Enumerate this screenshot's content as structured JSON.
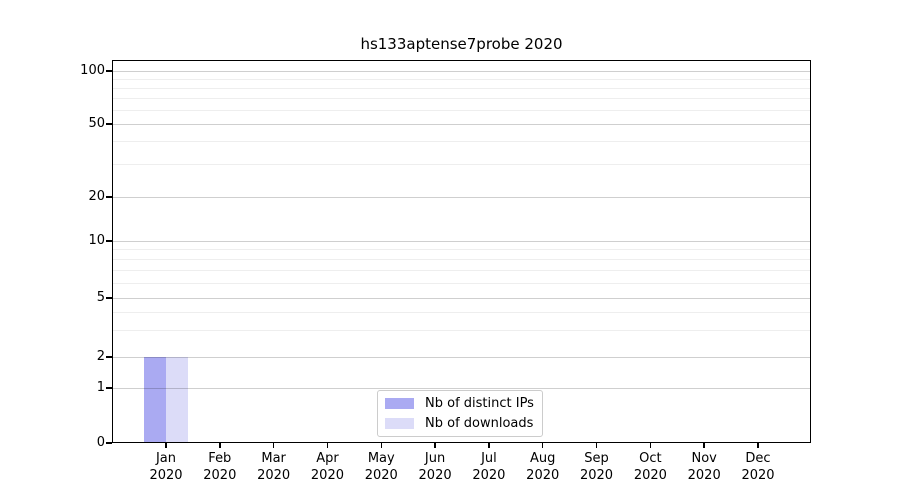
{
  "title": "hs133aptense7probe 2020",
  "legend": {
    "items": [
      {
        "label": "Nb of distinct IPs",
        "color": "#aaaaf2"
      },
      {
        "label": "Nb of downloads",
        "color": "#dcdcf8"
      }
    ]
  },
  "y_axis": {
    "tick_labels": [
      "0",
      "1",
      "2",
      "5",
      "10",
      "20",
      "50",
      "100"
    ]
  },
  "x_axis": {
    "ticks": [
      {
        "month": "Jan",
        "year": "2020"
      },
      {
        "month": "Feb",
        "year": "2020"
      },
      {
        "month": "Mar",
        "year": "2020"
      },
      {
        "month": "Apr",
        "year": "2020"
      },
      {
        "month": "May",
        "year": "2020"
      },
      {
        "month": "Jun",
        "year": "2020"
      },
      {
        "month": "Jul",
        "year": "2020"
      },
      {
        "month": "Aug",
        "year": "2020"
      },
      {
        "month": "Sep",
        "year": "2020"
      },
      {
        "month": "Oct",
        "year": "2020"
      },
      {
        "month": "Nov",
        "year": "2020"
      },
      {
        "month": "Dec",
        "year": "2020"
      }
    ]
  },
  "chart_data": {
    "type": "bar",
    "title": "hs133aptense7probe 2020",
    "categories": [
      "Jan 2020",
      "Feb 2020",
      "Mar 2020",
      "Apr 2020",
      "May 2020",
      "Jun 2020",
      "Jul 2020",
      "Aug 2020",
      "Sep 2020",
      "Oct 2020",
      "Nov 2020",
      "Dec 2020"
    ],
    "series": [
      {
        "name": "Nb of distinct IPs",
        "color": "#aaaaf2",
        "values": [
          2,
          0,
          0,
          0,
          0,
          0,
          0,
          0,
          0,
          0,
          0,
          0
        ]
      },
      {
        "name": "Nb of downloads",
        "color": "#dcdcf8",
        "values": [
          2,
          0,
          0,
          0,
          0,
          0,
          0,
          0,
          0,
          0,
          0,
          0
        ]
      }
    ],
    "xlabel": "",
    "ylabel": "",
    "yscale": "log-like (0,1,2,5,10,20,50,100)",
    "y_ticks": [
      0,
      1,
      2,
      5,
      10,
      20,
      50,
      100
    ],
    "y_minor_gridlines": [
      3,
      4,
      6,
      7,
      8,
      9,
      30,
      40,
      60,
      70,
      80,
      90
    ],
    "ylim": [
      0,
      120
    ],
    "grid": "horizontal major+minor",
    "legend_position": "lower center inside axes"
  },
  "colors": {
    "spine": "#000000",
    "major_grid": "#cfcfcf",
    "minor_grid": "#efefef",
    "background": "#ffffff"
  }
}
